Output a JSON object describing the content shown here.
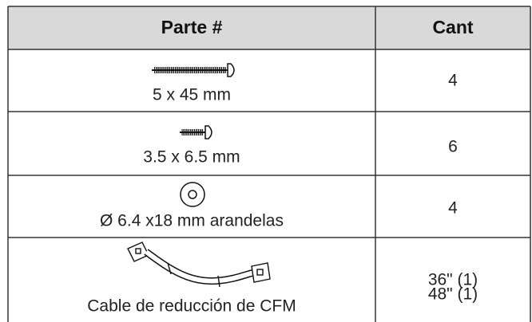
{
  "table": {
    "header": [
      "Parte #",
      "Cant"
    ],
    "rows": [
      {
        "part": "5 x 45 mm",
        "qty": [
          "4"
        ]
      },
      {
        "part": "3.5 x 6.5 mm",
        "qty": [
          "6"
        ]
      },
      {
        "part": "Ø 6.4 x18 mm arandelas",
        "qty": [
          "4"
        ]
      },
      {
        "part": "Cable de reducción de CFM",
        "qty": [
          "36\" (1)",
          "48\" (1)"
        ]
      }
    ]
  }
}
